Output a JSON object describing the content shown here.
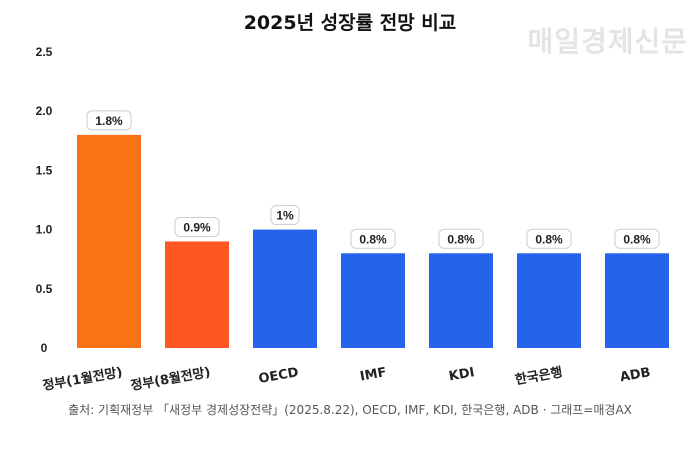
{
  "watermark": "매일경제신문",
  "source": "출처: 기획재정부 「새정부 경제성장전략」(2025.8.22), OECD, IMF, KDI, 한국은행, ADB · 그래프=매경AX",
  "chart_data": {
    "type": "bar",
    "title": "2025년 성장률 전망 비교",
    "categories": [
      "정부(1월전망)",
      "정부(8월전망)",
      "OECD",
      "IMF",
      "KDI",
      "한국은행",
      "ADB"
    ],
    "values": [
      1.8,
      0.9,
      1.0,
      0.8,
      0.8,
      0.8,
      0.8
    ],
    "data_labels": [
      "1.8%",
      "0.9%",
      "1%",
      "0.8%",
      "0.8%",
      "0.8%",
      "0.8%"
    ],
    "colors": [
      "#F97316",
      "#FF5722",
      "#2563EB",
      "#2563EB",
      "#2563EB",
      "#2563EB",
      "#2563EB"
    ],
    "yticks": [
      "0",
      "0.5",
      "1.0",
      "1.5",
      "2.0",
      "2.5"
    ],
    "ylim": [
      0,
      2.5
    ],
    "xlabel": "",
    "ylabel": "",
    "grid": false
  }
}
